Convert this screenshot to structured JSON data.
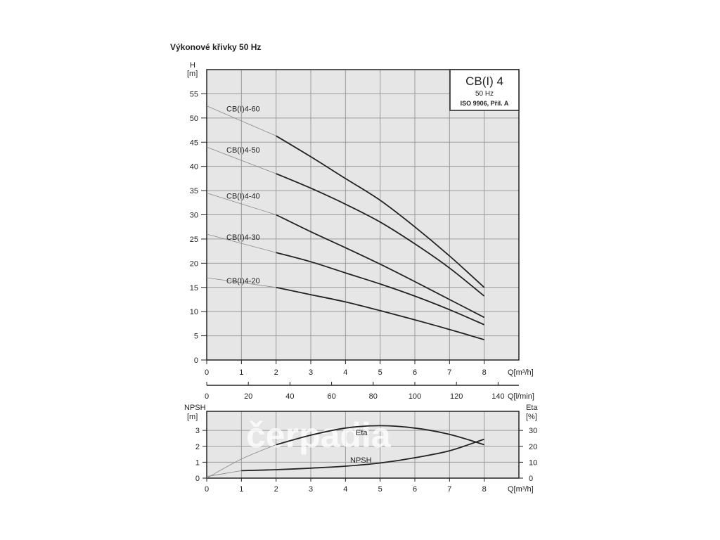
{
  "page_title": "Výkonové křivky 50 Hz",
  "watermark": "čerpadla",
  "colors": {
    "background": "#e6e6e6",
    "grid": "#9a9a9a",
    "curve": "#222222",
    "thin_curve": "#888888",
    "frame": "#222222",
    "watermark": "#ffffff"
  },
  "chart_data": [
    {
      "type": "line",
      "title": "CB(I) 4",
      "subtitle": [
        "50 Hz",
        "ISO 9906, Příl. A"
      ],
      "ylabel": [
        "H",
        "[m]"
      ],
      "xlabel": "Q[m³/h]",
      "xlim": [
        0,
        9
      ],
      "ylim": [
        0,
        60
      ],
      "xticks": [
        0,
        1,
        2,
        3,
        4,
        5,
        6,
        7,
        8
      ],
      "yticks": [
        0,
        5,
        10,
        15,
        20,
        25,
        30,
        35,
        40,
        45,
        50,
        55
      ],
      "secondary_xlabel": "Q[l/min]",
      "secondary_xticks": [
        0,
        20,
        40,
        60,
        80,
        100,
        120,
        140
      ],
      "grid": true,
      "series": [
        {
          "name": "CB(I)4-60",
          "x": [
            0,
            2,
            3,
            4,
            5,
            6,
            7,
            8
          ],
          "y": [
            52.5,
            46.3,
            42.0,
            37.5,
            33.0,
            27.5,
            21.5,
            15.0
          ],
          "operating_from": 2
        },
        {
          "name": "CB(I)4-50",
          "x": [
            0,
            2,
            3,
            4,
            5,
            6,
            7,
            8
          ],
          "y": [
            44.0,
            38.5,
            35.5,
            32.2,
            28.5,
            24.0,
            19.0,
            13.2
          ],
          "operating_from": 2
        },
        {
          "name": "CB(I)4-40",
          "x": [
            0,
            2,
            3,
            4,
            5,
            6,
            7,
            8
          ],
          "y": [
            34.5,
            30.0,
            26.5,
            23.2,
            19.8,
            16.2,
            12.5,
            8.8
          ],
          "operating_from": 2
        },
        {
          "name": "CB(I)4-30",
          "x": [
            0,
            2,
            3,
            4,
            5,
            6,
            7,
            8
          ],
          "y": [
            26.0,
            22.2,
            20.3,
            18.0,
            15.7,
            13.2,
            10.4,
            7.3
          ],
          "operating_from": 2
        },
        {
          "name": "CB(I)4-20",
          "x": [
            0,
            2,
            3,
            4,
            5,
            6,
            7,
            8
          ],
          "y": [
            17.0,
            15.0,
            13.5,
            12.0,
            10.2,
            8.3,
            6.3,
            4.2
          ],
          "operating_from": 2
        }
      ]
    },
    {
      "type": "line",
      "ylabel": [
        "NPSH",
        "[m]"
      ],
      "y2label": [
        "Eta",
        "[%]"
      ],
      "xlabel": "Q[m³/h]",
      "xlim": [
        0,
        9
      ],
      "ylim": [
        0,
        4.2
      ],
      "y2lim": [
        0,
        42
      ],
      "xticks": [
        0,
        1,
        2,
        3,
        4,
        5,
        6,
        7,
        8
      ],
      "yticks": [
        0,
        1,
        2,
        3
      ],
      "y2ticks": [
        0,
        10,
        20,
        30
      ],
      "grid": true,
      "series": [
        {
          "name": "Eta",
          "axis": "right",
          "x": [
            0,
            1,
            2,
            3,
            4,
            5,
            6,
            7,
            8
          ],
          "y": [
            0,
            12,
            21,
            27,
            31.5,
            33,
            31.5,
            27.5,
            21
          ],
          "operating_from": 2
        },
        {
          "name": "NPSH",
          "axis": "left",
          "x": [
            0,
            1,
            2,
            3,
            4,
            5,
            6,
            7,
            8
          ],
          "y": [
            0.1,
            0.47,
            0.53,
            0.63,
            0.75,
            0.95,
            1.28,
            1.72,
            2.45
          ],
          "operating_from": 1
        }
      ]
    }
  ]
}
